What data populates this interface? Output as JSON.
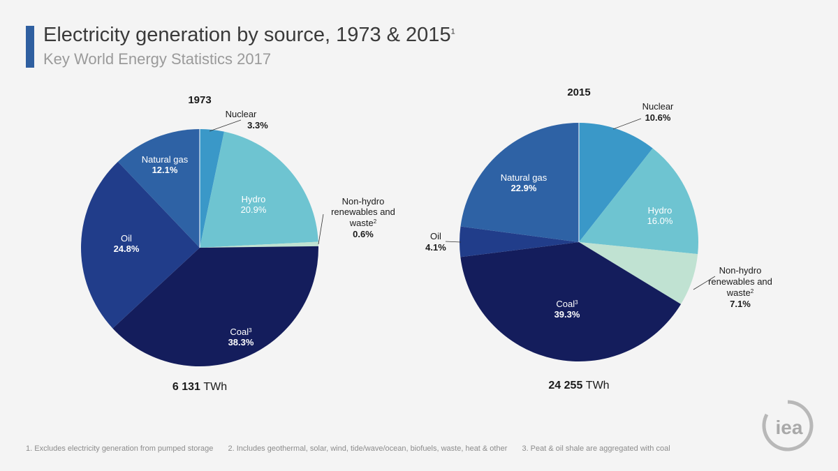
{
  "header": {
    "title": "Electricity generation by source, 1973 & 2015",
    "title_sup": "1",
    "subtitle": "Key World Energy Statistics 2017"
  },
  "chart_data": [
    {
      "type": "pie",
      "title": "1973",
      "total_value": "6 131",
      "total_unit": "TWh",
      "slices": [
        {
          "label": "Nuclear",
          "sup": "",
          "value": 3.3,
          "display": "3.3%",
          "color": "#3a98c8"
        },
        {
          "label": "Hydro",
          "sup": "",
          "value": 20.9,
          "display": "20.9%",
          "color": "#6ec4d1"
        },
        {
          "label": "Non-hydro renewables and waste",
          "sup": "2",
          "value": 0.6,
          "display": "0.6%",
          "color": "#c0e2d2"
        },
        {
          "label": "Coal",
          "sup": "3",
          "value": 38.3,
          "display": "38.3%",
          "color": "#141d5c"
        },
        {
          "label": "Oil",
          "sup": "",
          "value": 24.8,
          "display": "24.8%",
          "color": "#213d8a"
        },
        {
          "label": "Natural gas",
          "sup": "",
          "value": 12.1,
          "display": "12.1%",
          "color": "#2e62a5"
        }
      ]
    },
    {
      "type": "pie",
      "title": "2015",
      "total_value": "24 255",
      "total_unit": "TWh",
      "slices": [
        {
          "label": "Nuclear",
          "sup": "",
          "value": 10.6,
          "display": "10.6%",
          "color": "#3a98c8"
        },
        {
          "label": "Hydro",
          "sup": "",
          "value": 16.0,
          "display": "16.0%",
          "color": "#6ec4d1"
        },
        {
          "label": "Non-hydro renewables and waste",
          "sup": "2",
          "value": 7.1,
          "display": "7.1%",
          "color": "#c0e2d2"
        },
        {
          "label": "Coal",
          "sup": "3",
          "value": 39.3,
          "display": "39.3%",
          "color": "#141d5c"
        },
        {
          "label": "Oil",
          "sup": "",
          "value": 4.1,
          "display": "4.1%",
          "color": "#213d8a"
        },
        {
          "label": "Natural gas",
          "sup": "",
          "value": 22.9,
          "display": "22.9%",
          "color": "#2e62a5"
        }
      ]
    }
  ],
  "footnotes": [
    "1. Excludes electricity generation from pumped storage",
    "2. Includes geothermal, solar, wind, tide/wave/ocean, biofuels, waste, heat & other",
    "3. Peat & oil shale are aggregated with coal"
  ],
  "logo": {
    "text": "iea"
  }
}
